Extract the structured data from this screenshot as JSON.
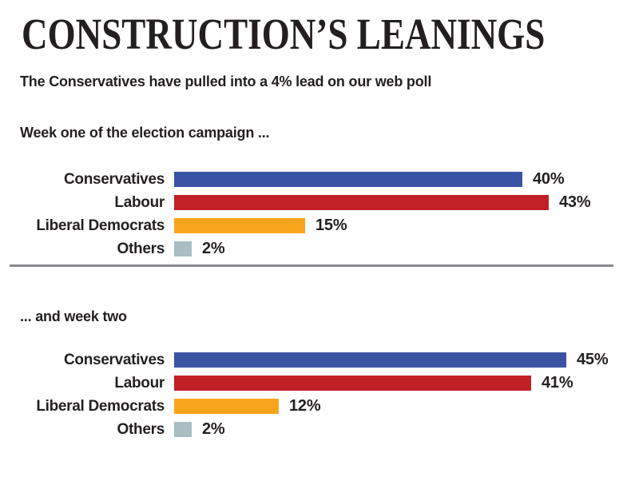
{
  "page": {
    "title": "CONSTRUCTION’S LEANINGS",
    "subtitle": "The Conservatives have pulled into a 4% lead on our web poll"
  },
  "colors": {
    "conservatives": "#3B53A5",
    "labour": "#C12026",
    "liberal_democrats": "#F9A51B",
    "others": "#A9BEC2",
    "text": "#231F20",
    "divider": "#87898C"
  },
  "chart_data": [
    {
      "type": "bar",
      "orientation": "horizontal",
      "title": "Week one of the election campaign ...",
      "categories": [
        "Conservatives",
        "Labour",
        "Liberal Democrats",
        "Others"
      ],
      "values": [
        40,
        43,
        15,
        2
      ],
      "value_labels": [
        "40%",
        "43%",
        "15%",
        "2%"
      ],
      "bar_colors": [
        "#3B53A5",
        "#C12026",
        "#F9A51B",
        "#A9BEC2"
      ],
      "xlim": [
        0,
        50
      ],
      "grid": false,
      "legend": false,
      "value_label_position": "end-of-bar"
    },
    {
      "type": "bar",
      "orientation": "horizontal",
      "title": "... and week two",
      "categories": [
        "Conservatives",
        "Labour",
        "Liberal Democrats",
        "Others"
      ],
      "values": [
        45,
        41,
        12,
        2
      ],
      "value_labels": [
        "45%",
        "41%",
        "12%",
        "2%"
      ],
      "bar_colors": [
        "#3B53A5",
        "#C12026",
        "#F9A51B",
        "#A9BEC2"
      ],
      "xlim": [
        0,
        50
      ],
      "grid": false,
      "legend": false,
      "value_label_position": "end-of-bar"
    }
  ]
}
